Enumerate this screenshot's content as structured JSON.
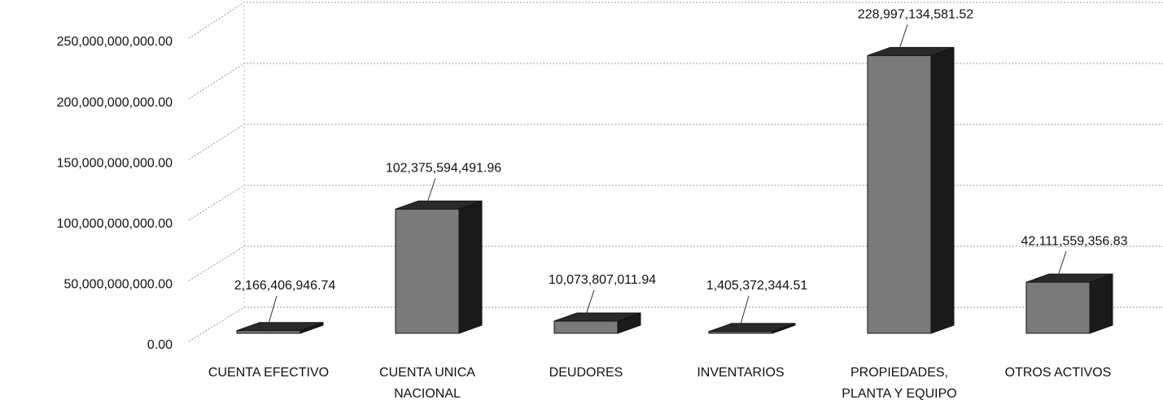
{
  "chart_data": {
    "type": "bar",
    "categories": [
      "CUENTA EFECTIVO",
      "CUENTA UNICA NACIONAL",
      "DEUDORES",
      "INVENTARIOS",
      "PROPIEDADES, PLANTA Y EQUIPO",
      "OTROS ACTIVOS"
    ],
    "values": [
      2166406946.74,
      102375594491.96,
      10073807011.94,
      1405372344.51,
      228997134581.52,
      42111559356.83
    ],
    "value_labels": [
      "2,166,406,946.74",
      "102,375,594,491.96",
      "10,073,807,011.94",
      "1,405,372,344.51",
      "228,997,134,581.52",
      "42,111,559,356.83"
    ],
    "color": "#7a7a7a",
    "ylim": [
      0,
      250000000000
    ],
    "yticks": [
      {
        "value": 0,
        "label": "0.00"
      },
      {
        "value": 50000000000,
        "label": "50,000,000,000.00"
      },
      {
        "value": 100000000000,
        "label": "100,000,000,000.00"
      },
      {
        "value": 150000000000,
        "label": "150,000,000,000.00"
      },
      {
        "value": 200000000000,
        "label": "200,000,000,000.00"
      },
      {
        "value": 250000000000,
        "label": "250,000,000,000.00"
      }
    ],
    "grid": true
  }
}
